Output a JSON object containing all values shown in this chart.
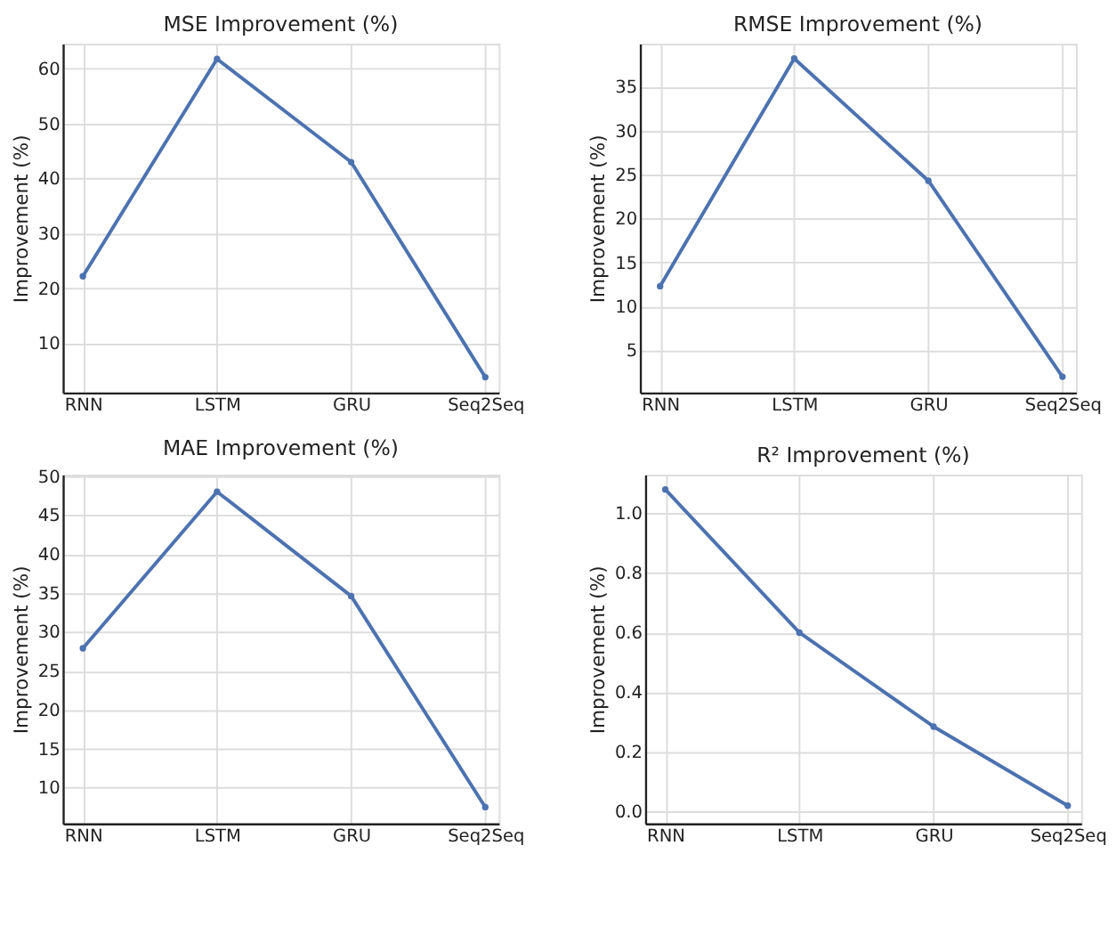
{
  "chart_data": [
    {
      "type": "line",
      "title": "MSE Improvement (%)",
      "ylabel": "Improvement (%)",
      "categories": [
        "RNN",
        "LSTM",
        "GRU",
        "Seq2Seq"
      ],
      "series": [
        {
          "color": "#4c72b0",
          "values": [
            22.2,
            61.8,
            43.0,
            3.8
          ]
        }
      ],
      "ylim": [
        1,
        64.6
      ],
      "yticks": [
        10,
        20,
        30,
        40,
        50,
        60
      ],
      "grid": true,
      "marker": "circle",
      "line_style": "solid"
    },
    {
      "type": "line",
      "title": "RMSE Improvement (%)",
      "ylabel": "Improvement (%)",
      "categories": [
        "RNN",
        "LSTM",
        "GRU",
        "Seq2Seq"
      ],
      "series": [
        {
          "color": "#4c72b0",
          "values": [
            12.3,
            38.2,
            24.3,
            2.0
          ]
        }
      ],
      "ylim": [
        0.2,
        39.9
      ],
      "yticks": [
        5,
        10,
        15,
        20,
        25,
        30,
        35
      ],
      "grid": true,
      "marker": "circle",
      "line_style": "solid"
    },
    {
      "type": "line",
      "title": "MAE Improvement (%)",
      "ylabel": "Improvement (%)",
      "categories": [
        "RNN",
        "LSTM",
        "GRU",
        "Seq2Seq"
      ],
      "series": [
        {
          "color": "#4c72b0",
          "values": [
            27.9,
            48.0,
            34.6,
            7.5
          ]
        }
      ],
      "ylim": [
        5.4,
        50.2
      ],
      "yticks": [
        10,
        15,
        20,
        25,
        30,
        35,
        40,
        45,
        50
      ],
      "grid": true,
      "marker": "circle",
      "line_style": "solid"
    },
    {
      "type": "line",
      "title": "R² Improvement (%)",
      "ylabel": "Improvement (%)",
      "categories": [
        "RNN",
        "LSTM",
        "GRU",
        "Seq2Seq"
      ],
      "series": [
        {
          "color": "#4c72b0",
          "values": [
            1.08,
            0.6,
            0.285,
            0.02
          ]
        }
      ],
      "ylim": [
        -0.04,
        1.13
      ],
      "yticks": [
        {
          "value": 0,
          "label": "0.0"
        },
        0.2,
        0.4,
        0.6,
        0.8,
        {
          "value": 1,
          "label": "1.0"
        }
      ],
      "grid": true,
      "marker": "circle",
      "line_style": "solid"
    }
  ]
}
